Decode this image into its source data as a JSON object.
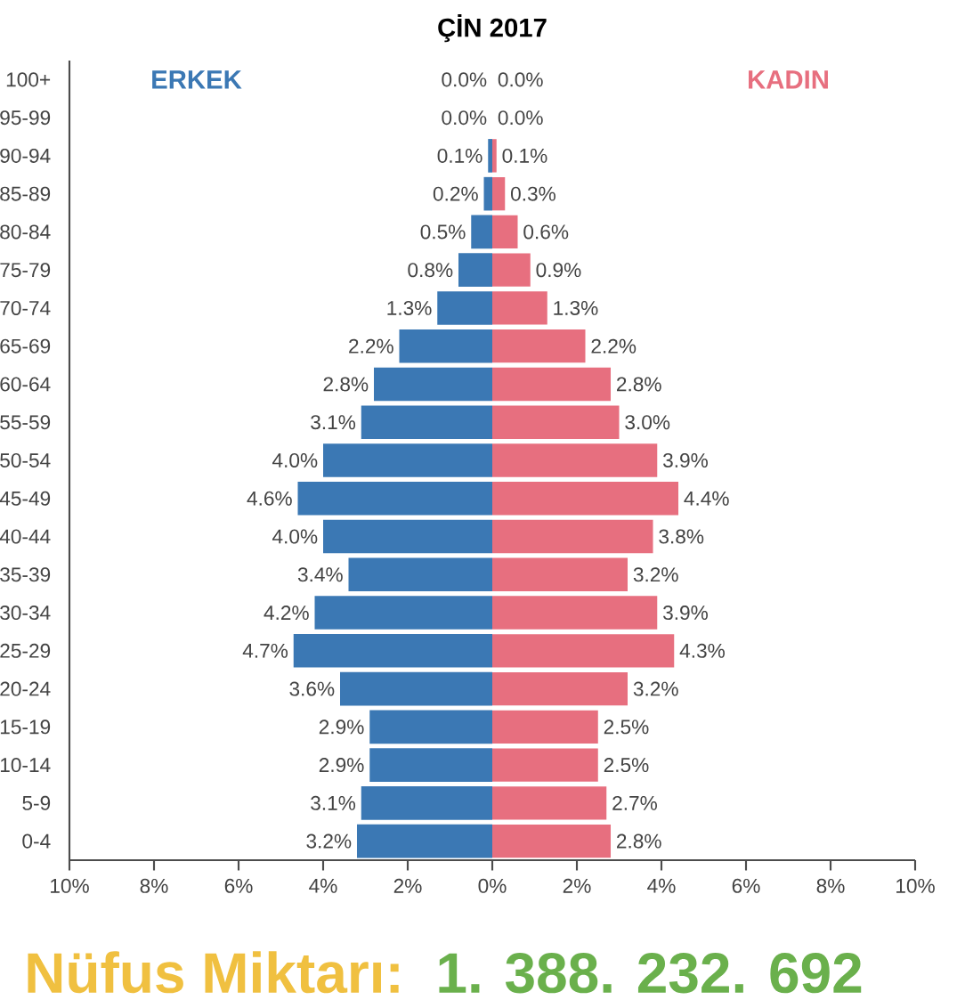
{
  "chart_data": {
    "type": "bar",
    "orientation": "horizontal",
    "title": "ÇİN 2017",
    "categories": [
      "100+",
      "95-99",
      "90-94",
      "85-89",
      "80-84",
      "75-79",
      "70-74",
      "65-69",
      "60-64",
      "55-59",
      "50-54",
      "45-49",
      "40-44",
      "35-39",
      "30-34",
      "25-29",
      "20-24",
      "15-19",
      "10-14",
      "5-9",
      "0-4"
    ],
    "series": [
      {
        "name": "ERKEK",
        "color": "#3b78b4",
        "values": [
          0.0,
          0.0,
          0.1,
          0.2,
          0.5,
          0.8,
          1.3,
          2.2,
          2.8,
          3.1,
          4.0,
          4.6,
          4.0,
          3.4,
          4.2,
          4.7,
          3.6,
          2.9,
          2.9,
          3.1,
          3.2
        ],
        "base": [
          null,
          null,
          -0.1,
          -0.2,
          -0.5,
          -0.8,
          -1.3,
          -2.2,
          -2.8,
          -3.1,
          -4.0,
          -4.6,
          -4.0,
          -3.4,
          -4.2,
          -4.7,
          -3.6,
          -2.9,
          -2.9,
          -3.1,
          -3.2
        ],
        "value_labels": [
          "0.0%",
          "0.0%",
          "0.1%",
          "0.2%",
          "0.5%",
          "0.8%",
          "1.3%",
          "2.2%",
          "2.8%",
          "3.1%",
          "4.0%",
          "4.6%",
          "4.0%",
          "3.4%",
          "4.2%",
          "4.7%",
          "3.6%",
          "2.9%",
          "2.9%",
          "3.1%",
          "3.2%"
        ]
      },
      {
        "name": "KADIN",
        "color": "#e76f7f",
        "values": [
          0.0,
          0.0,
          0.1,
          0.3,
          0.6,
          0.9,
          1.3,
          2.2,
          2.8,
          3.0,
          3.9,
          4.4,
          3.8,
          3.2,
          3.9,
          4.3,
          3.2,
          2.5,
          2.5,
          2.7,
          2.8
        ],
        "value_labels": [
          "0.0%",
          "0.0%",
          "0.1%",
          "0.3%",
          "0.6%",
          "0.9%",
          "1.3%",
          "2.2%",
          "2.8%",
          "3.0%",
          "3.9%",
          "4.4%",
          "3.8%",
          "3.2%",
          "3.9%",
          "4.3%",
          "3.2%",
          "2.5%",
          "2.5%",
          "2.7%",
          "2.8%"
        ]
      }
    ],
    "xlim": [
      -10,
      10
    ],
    "xticks": [
      {
        "value": -10,
        "label": "10%"
      },
      {
        "value": -8,
        "label": "8%"
      },
      {
        "value": -6,
        "label": "6%"
      },
      {
        "value": -4,
        "label": "4%"
      },
      {
        "value": -2,
        "label": "2%"
      },
      {
        "value": 0,
        "label": "0%"
      },
      {
        "value": 2,
        "label": "2%"
      },
      {
        "value": 4,
        "label": "4%"
      },
      {
        "value": 6,
        "label": "6%"
      },
      {
        "value": 8,
        "label": "8%"
      },
      {
        "value": 10,
        "label": "10%"
      }
    ],
    "grid": false,
    "annotations": [
      "Nüfus Miktarı:",
      "1. 388. 232. 692"
    ]
  }
}
